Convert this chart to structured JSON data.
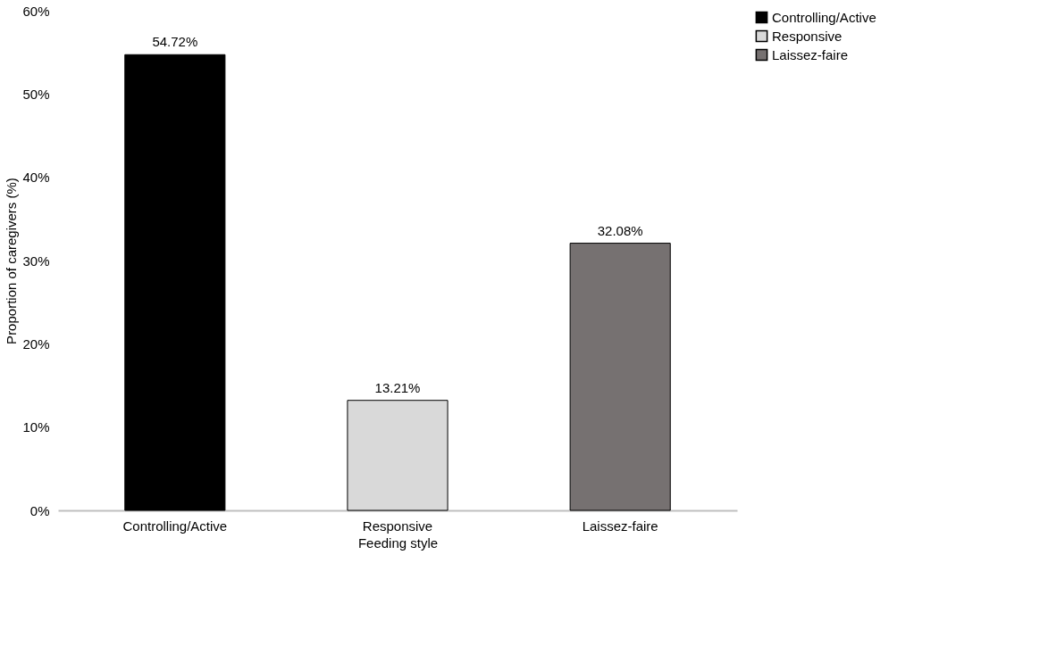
{
  "chart_data": {
    "type": "bar",
    "xlabel": "Feeding style",
    "ylabel": "Proportion of caregivers (%)",
    "categories": [
      "Controlling/Active",
      "Responsive",
      "Laissez-faire"
    ],
    "series": [
      {
        "name": "Controlling/Active",
        "color": "#000000",
        "values": [
          54.72,
          null,
          null
        ],
        "value_labels": [
          "54.72%",
          null,
          null
        ]
      },
      {
        "name": "Responsive",
        "color": "#d9d9d9",
        "values": [
          null,
          13.21,
          null
        ],
        "value_labels": [
          null,
          "13.21%",
          null
        ]
      },
      {
        "name": "Laissez-faire",
        "color": "#767171",
        "values": [
          null,
          null,
          32.08
        ],
        "value_labels": [
          null,
          null,
          "32.08%"
        ]
      }
    ],
    "ylim": [
      0,
      60
    ],
    "yticks": [
      {
        "value": 0,
        "label": "0%"
      },
      {
        "value": 10,
        "label": "10%"
      },
      {
        "value": 20,
        "label": "20%"
      },
      {
        "value": 30,
        "label": "30%"
      },
      {
        "value": 40,
        "label": "40%"
      },
      {
        "value": 50,
        "label": "50%"
      },
      {
        "value": 60,
        "label": "60%"
      }
    ],
    "grid": false,
    "legend": "right"
  }
}
